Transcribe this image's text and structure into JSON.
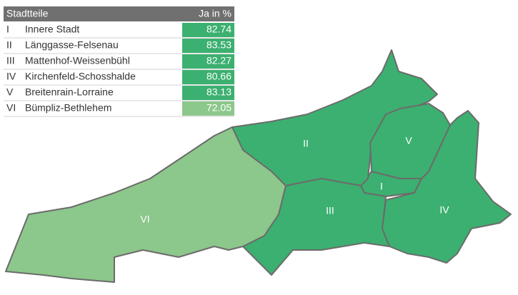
{
  "table": {
    "header": [
      "Stadtteile",
      "Ja in %"
    ]
  },
  "districts": [
    {
      "numeral": "I",
      "name": "Innere Stadt",
      "value": 82.74,
      "color": "#3cb070"
    },
    {
      "numeral": "II",
      "name": "Länggasse-Felsenau",
      "value": 83.53,
      "color": "#3cb070"
    },
    {
      "numeral": "III",
      "name": "Mattenhof-Weissenbühl",
      "value": 82.27,
      "color": "#3cb070"
    },
    {
      "numeral": "IV",
      "name": "Kirchenfeld-Schosshalde",
      "value": 80.66,
      "color": "#3cb070"
    },
    {
      "numeral": "V",
      "name": "Breitenrain-Lorraine",
      "value": 83.13,
      "color": "#3cb070"
    },
    {
      "numeral": "VI",
      "name": "Bümpliz-Bethlehem",
      "value": 72.05,
      "color": "#8cc78b"
    }
  ]
}
